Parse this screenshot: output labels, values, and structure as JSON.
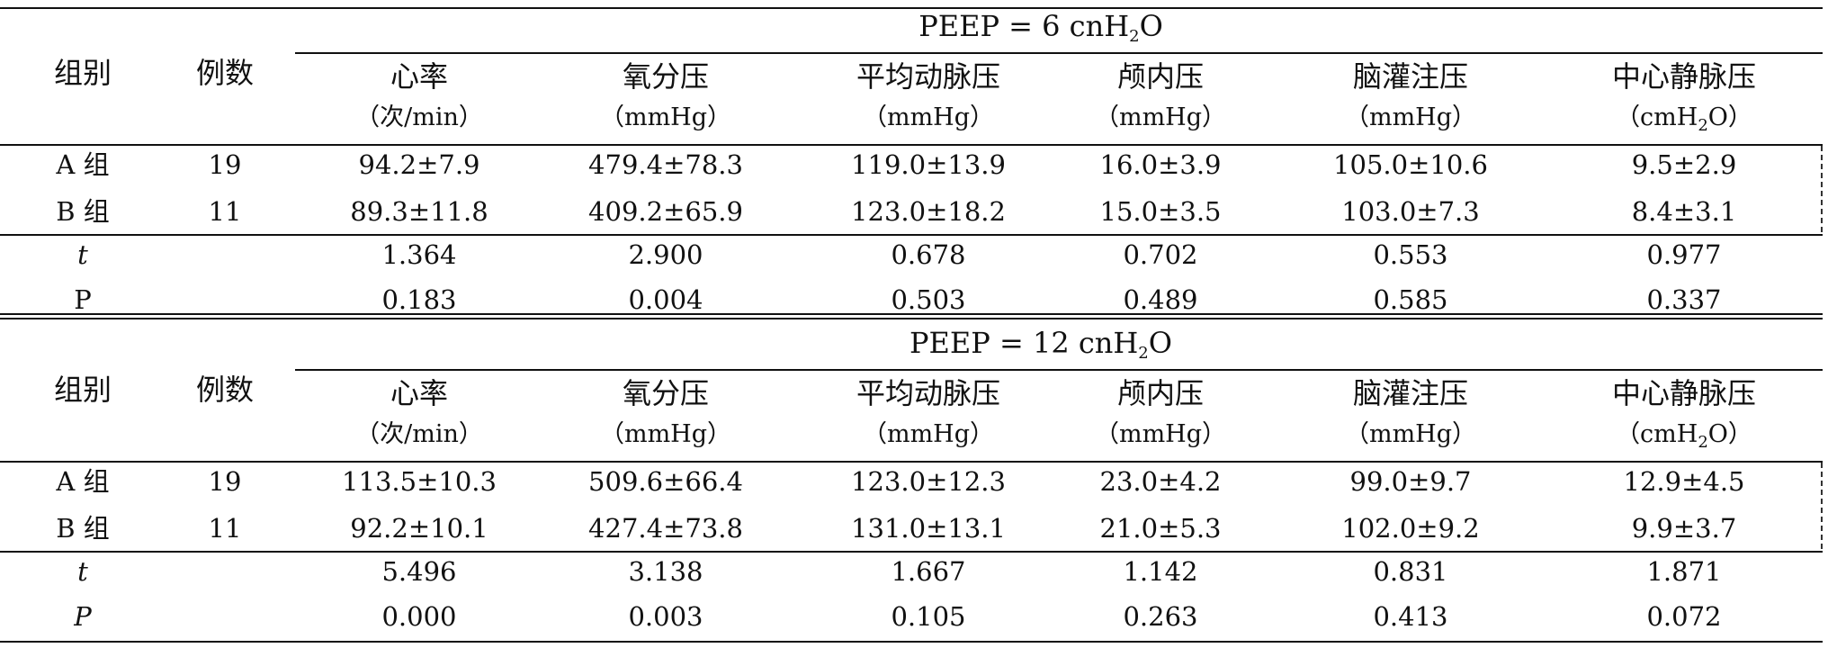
{
  "sections": [
    {
      "peep_prefix": "PEEP = 6  cnH",
      "peep_sub": "2",
      "peep_suffix": "O",
      "header": {
        "group": "组别",
        "count": "例数",
        "cols": [
          {
            "name": "心率",
            "unit": "（次/min）"
          },
          {
            "name": "氧分压",
            "unit": "（mmHg）"
          },
          {
            "name": "平均动脉压",
            "unit": "（mmHg）"
          },
          {
            "name": "颅内压",
            "unit": "（mmHg）"
          },
          {
            "name": "脑灌注压",
            "unit": "（mmHg）"
          },
          {
            "name": "中心静脉压",
            "unit_prefix": "（cmH",
            "unit_sub": "2",
            "unit_suffix": "O）"
          }
        ]
      },
      "rows": [
        {
          "group": "A 组",
          "n": "19",
          "values": [
            "94.2±7.9",
            "479.4±78.3",
            "119.0±13.9",
            "16.0±3.9",
            "105.0±10.6",
            "9.5±2.9"
          ]
        },
        {
          "group": "B 组",
          "n": "11",
          "values": [
            "89.3±11.8",
            "409.2±65.9",
            "123.0±18.2",
            "15.0±3.5",
            "103.0±7.3",
            "8.4±3.1"
          ]
        }
      ],
      "stats": [
        {
          "label": "t",
          "values": [
            "1.364",
            "2.900",
            "0.678",
            "0.702",
            "0.553",
            "0.977"
          ]
        },
        {
          "label": "P",
          "values": [
            "0.183",
            "0.004",
            "0.503",
            "0.489",
            "0.585",
            "0.337"
          ]
        }
      ]
    },
    {
      "peep_prefix": "PEEP = 12  cnH",
      "peep_sub": "2",
      "peep_suffix": "O",
      "header": {
        "group": "组别",
        "count": "例数",
        "cols": [
          {
            "name": "心率",
            "unit": "（次/min）"
          },
          {
            "name": "氧分压",
            "unit": "（mmHg）"
          },
          {
            "name": "平均动脉压",
            "unit": "（mmHg）"
          },
          {
            "name": "颅内压",
            "unit": "（mmHg）"
          },
          {
            "name": "脑灌注压",
            "unit": "（mmHg）"
          },
          {
            "name": "中心静脉压",
            "unit_prefix": "（cmH",
            "unit_sub": "2",
            "unit_suffix": "O）"
          }
        ]
      },
      "rows": [
        {
          "group": "A 组",
          "n": "19",
          "values": [
            "113.5±10.3",
            "509.6±66.4",
            "123.0±12.3",
            "23.0±4.2",
            "99.0±9.7",
            "12.9±4.5"
          ]
        },
        {
          "group": "B 组",
          "n": "11",
          "values": [
            "92.2±10.1",
            "427.4±73.8",
            "131.0±13.1",
            "21.0±5.3",
            "102.0±9.2",
            "9.9±3.7"
          ]
        }
      ],
      "stats": [
        {
          "label": "t",
          "values": [
            "5.496",
            "3.138",
            "1.667",
            "1.142",
            "0.831",
            "1.871"
          ]
        },
        {
          "label": "P",
          "values": [
            "0.000",
            "0.003",
            "0.105",
            "0.263",
            "0.413",
            "0.072"
          ]
        }
      ]
    }
  ]
}
